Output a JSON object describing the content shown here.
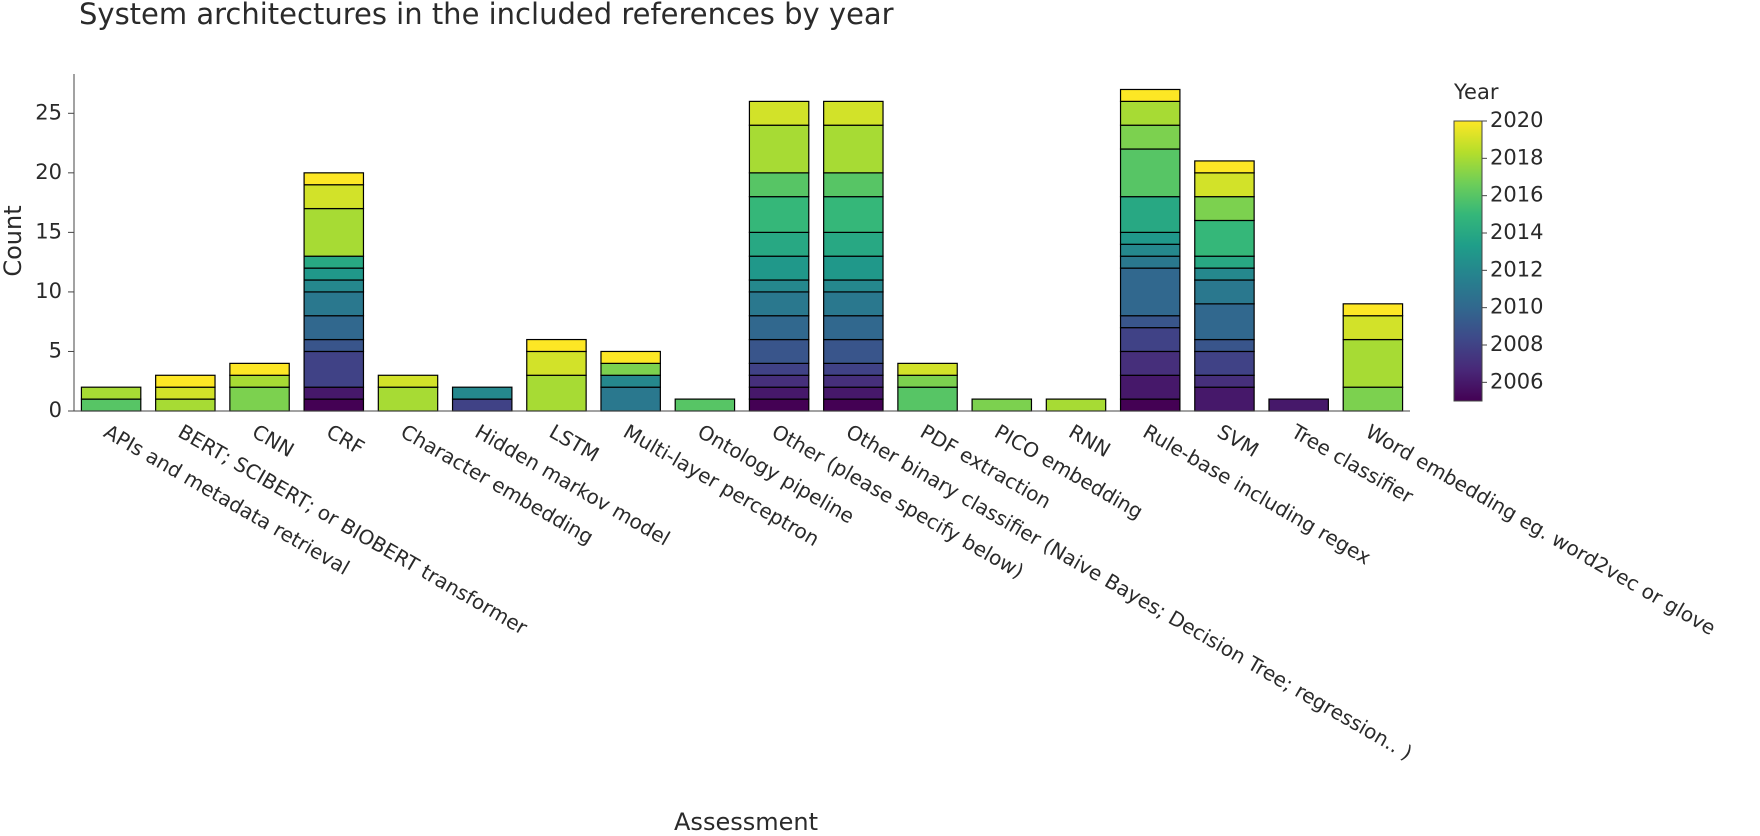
{
  "chart_data": {
    "type": "stacked_bar",
    "title": "System architectures in the included references by year",
    "x_label": "Assessment",
    "y_label": "Count",
    "categories": [
      "APIs and metadata retrieval",
      "BERT; SCIBERT; or BIOBERT transformer",
      "CNN",
      "CRF",
      "Character embedding",
      "Hidden markov model",
      "LSTM",
      "Multi-layer perceptron",
      "Ontology pipeline",
      "Other (please specify below)",
      "Other binary classifier (Naive Bayes; Decision Tree; regression.. )",
      "PDF extraction",
      "PICO embedding",
      "RNN",
      "Rule-base including regex",
      "SVM",
      "Tree classifier",
      "Word embedding eg. word2vec or glove"
    ],
    "segments": [
      [
        {
          "year": 2016,
          "count": 1
        },
        {
          "year": 2018,
          "count": 1
        }
      ],
      [
        {
          "year": 2018,
          "count": 1
        },
        {
          "year": 2019,
          "count": 1
        },
        {
          "year": 2020,
          "count": 1
        }
      ],
      [
        {
          "year": 2017,
          "count": 2
        },
        {
          "year": 2018,
          "count": 1
        },
        {
          "year": 2020,
          "count": 1
        }
      ],
      [
        {
          "year": 2005,
          "count": 1
        },
        {
          "year": 2006,
          "count": 1
        },
        {
          "year": 2008,
          "count": 3
        },
        {
          "year": 2009,
          "count": 1
        },
        {
          "year": 2010,
          "count": 2
        },
        {
          "year": 2011,
          "count": 2
        },
        {
          "year": 2012,
          "count": 1
        },
        {
          "year": 2013,
          "count": 1
        },
        {
          "year": 2014,
          "count": 1
        },
        {
          "year": 2018,
          "count": 4
        },
        {
          "year": 2019,
          "count": 2
        },
        {
          "year": 2020,
          "count": 1
        }
      ],
      [
        {
          "year": 2018,
          "count": 2
        },
        {
          "year": 2019,
          "count": 1
        }
      ],
      [
        {
          "year": 2008,
          "count": 1
        },
        {
          "year": 2012,
          "count": 1
        }
      ],
      [
        {
          "year": 2018,
          "count": 3
        },
        {
          "year": 2019,
          "count": 2
        },
        {
          "year": 2020,
          "count": 1
        }
      ],
      [
        {
          "year": 2011,
          "count": 2
        },
        {
          "year": 2012,
          "count": 1
        },
        {
          "year": 2017,
          "count": 1
        },
        {
          "year": 2020,
          "count": 1
        }
      ],
      [
        {
          "year": 2016,
          "count": 1
        }
      ],
      [
        {
          "year": 2005,
          "count": 1
        },
        {
          "year": 2006,
          "count": 1
        },
        {
          "year": 2007,
          "count": 1
        },
        {
          "year": 2008,
          "count": 1
        },
        {
          "year": 2009,
          "count": 2
        },
        {
          "year": 2010,
          "count": 2
        },
        {
          "year": 2011,
          "count": 2
        },
        {
          "year": 2012,
          "count": 1
        },
        {
          "year": 2013,
          "count": 2
        },
        {
          "year": 2014,
          "count": 2
        },
        {
          "year": 2015,
          "count": 3
        },
        {
          "year": 2016,
          "count": 2
        },
        {
          "year": 2018,
          "count": 4
        },
        {
          "year": 2019,
          "count": 2
        }
      ],
      [
        {
          "year": 2005,
          "count": 1
        },
        {
          "year": 2006,
          "count": 1
        },
        {
          "year": 2007,
          "count": 1
        },
        {
          "year": 2008,
          "count": 1
        },
        {
          "year": 2009,
          "count": 2
        },
        {
          "year": 2010,
          "count": 2
        },
        {
          "year": 2011,
          "count": 2
        },
        {
          "year": 2012,
          "count": 1
        },
        {
          "year": 2013,
          "count": 2
        },
        {
          "year": 2014,
          "count": 2
        },
        {
          "year": 2015,
          "count": 3
        },
        {
          "year": 2016,
          "count": 2
        },
        {
          "year": 2018,
          "count": 4
        },
        {
          "year": 2019,
          "count": 2
        }
      ],
      [
        {
          "year": 2016,
          "count": 2
        },
        {
          "year": 2017,
          "count": 1
        },
        {
          "year": 2019,
          "count": 1
        }
      ],
      [
        {
          "year": 2017,
          "count": 1
        }
      ],
      [
        {
          "year": 2018,
          "count": 1
        }
      ],
      [
        {
          "year": 2005,
          "count": 1
        },
        {
          "year": 2006,
          "count": 2
        },
        {
          "year": 2007,
          "count": 2
        },
        {
          "year": 2008,
          "count": 2
        },
        {
          "year": 2009,
          "count": 1
        },
        {
          "year": 2010,
          "count": 4
        },
        {
          "year": 2011,
          "count": 1
        },
        {
          "year": 2012,
          "count": 1
        },
        {
          "year": 2013,
          "count": 1
        },
        {
          "year": 2014,
          "count": 3
        },
        {
          "year": 2016,
          "count": 4
        },
        {
          "year": 2017,
          "count": 2
        },
        {
          "year": 2018,
          "count": 2
        },
        {
          "year": 2020,
          "count": 1
        }
      ],
      [
        {
          "year": 2006,
          "count": 2
        },
        {
          "year": 2007,
          "count": 1
        },
        {
          "year": 2008,
          "count": 2
        },
        {
          "year": 2009,
          "count": 1
        },
        {
          "year": 2010,
          "count": 3
        },
        {
          "year": 2011,
          "count": 2
        },
        {
          "year": 2012,
          "count": 1
        },
        {
          "year": 2014,
          "count": 1
        },
        {
          "year": 2015,
          "count": 3
        },
        {
          "year": 2017,
          "count": 2
        },
        {
          "year": 2019,
          "count": 2
        },
        {
          "year": 2020,
          "count": 1
        }
      ],
      [
        {
          "year": 2006,
          "count": 1
        }
      ],
      [
        {
          "year": 2017,
          "count": 2
        },
        {
          "year": 2018,
          "count": 4
        },
        {
          "year": 2019,
          "count": 2
        },
        {
          "year": 2020,
          "count": 1
        }
      ]
    ],
    "ylim": [
      0,
      28.3
    ],
    "yticks": [
      0,
      5,
      10,
      15,
      20,
      25
    ],
    "colorbar": {
      "title": "Year",
      "range": [
        2005,
        2020
      ],
      "ticks": [
        2006,
        2008,
        2010,
        2012,
        2014,
        2016,
        2018,
        2020
      ],
      "colorscale": [
        "#440154",
        "#482878",
        "#3e4989",
        "#31688e",
        "#26828e",
        "#1f9e89",
        "#35b779",
        "#6ece58",
        "#b5de2b",
        "#fde725"
      ]
    }
  }
}
